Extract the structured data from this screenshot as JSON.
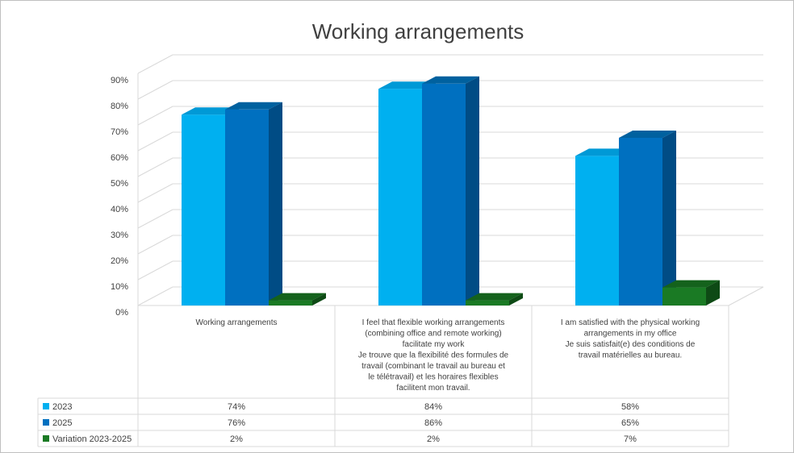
{
  "chart_data": {
    "type": "bar",
    "title": "Working arrangements",
    "categories": [
      [
        "Working arrangements"
      ],
      [
        "I feel that flexible working arrangements",
        "(combining office and remote working)",
        "facilitate my work",
        "Je trouve que la flexibilité des formules de",
        "travail (combinant le travail au bureau et",
        "le télétravail) et les horaires flexibles",
        "facilitent mon travail."
      ],
      [
        "I am satisfied with the physical working",
        "arrangements in my office",
        "Je suis satisfait(e) des conditions de",
        "travail matérielles au bureau."
      ]
    ],
    "series": [
      {
        "name": "2023",
        "color": "#00b0f0",
        "top_color": "#0099d6",
        "side_color": "#0086bd",
        "values": [
          74,
          84,
          58
        ],
        "labels": [
          "74%",
          "84%",
          "58%"
        ]
      },
      {
        "name": "2025",
        "color": "#0070c0",
        "top_color": "#00619f",
        "side_color": "#004c85",
        "values": [
          76,
          86,
          65
        ],
        "labels": [
          "76%",
          "86%",
          "65%"
        ]
      },
      {
        "name": "Variation 2023-2025",
        "color": "#1a7a24",
        "top_color": "#14621c",
        "side_color": "#0e4a15",
        "values": [
          2,
          2,
          7
        ],
        "labels": [
          "2%",
          "2%",
          "7%"
        ]
      }
    ],
    "yticks": [
      "0%",
      "10%",
      "20%",
      "30%",
      "40%",
      "50%",
      "60%",
      "70%",
      "80%",
      "90%"
    ],
    "ylim": [
      0,
      90
    ],
    "grid": true,
    "legend": "data-table"
  }
}
